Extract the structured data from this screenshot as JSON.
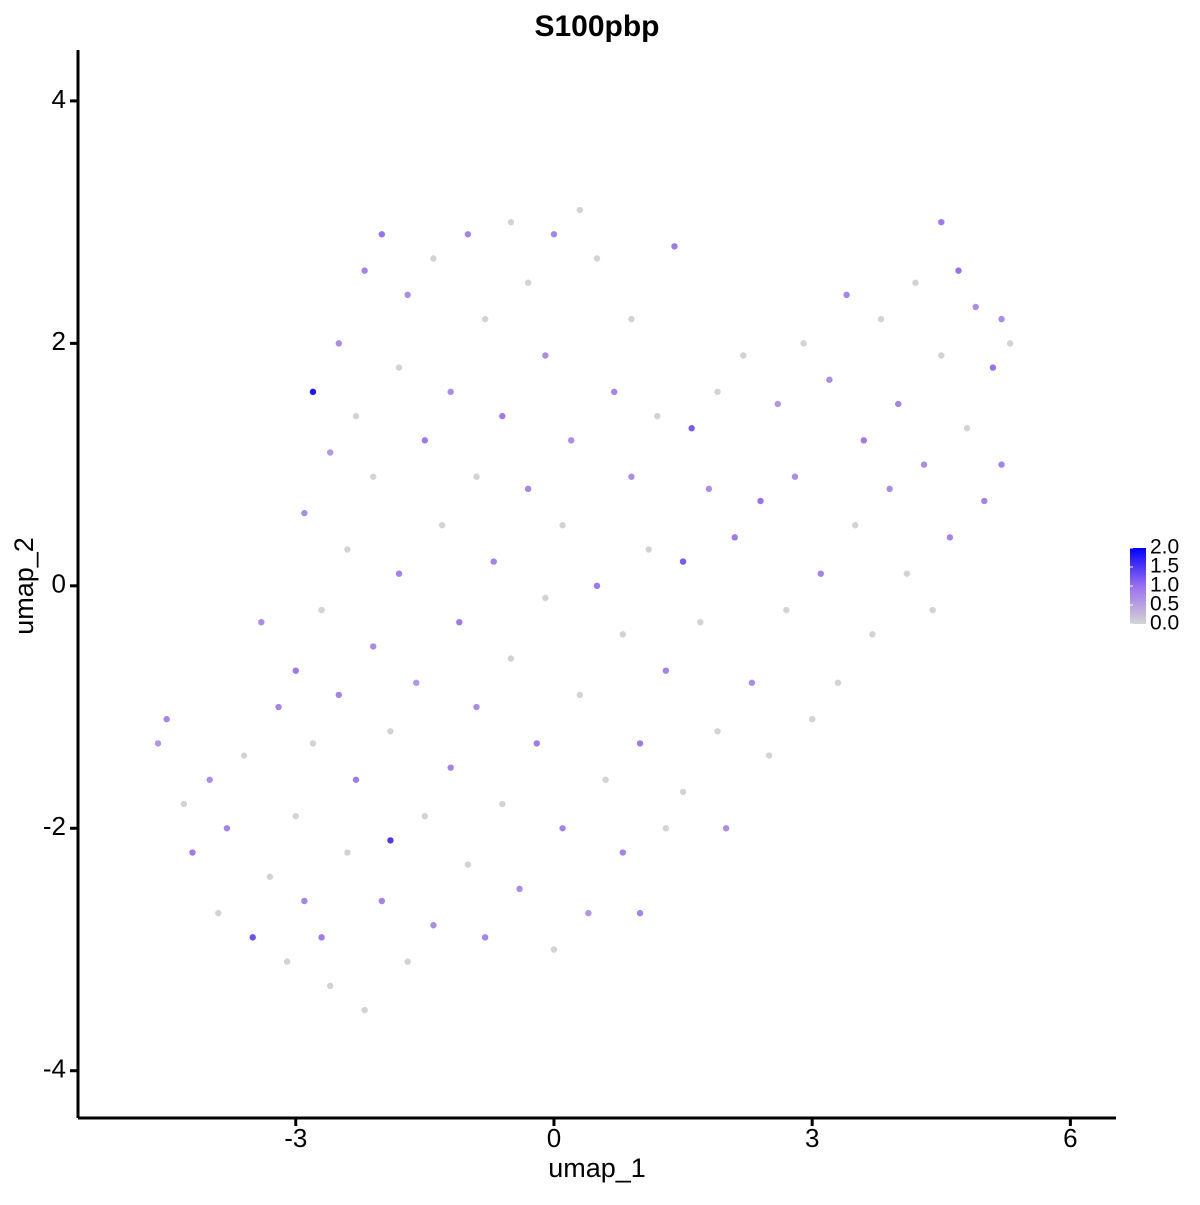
{
  "chart_data": {
    "type": "scatter",
    "title": "S100pbp",
    "x_label": "umap_1",
    "y_label": "umap_2",
    "x": [
      -4.6,
      -4.5,
      -4.3,
      -4.2,
      -4.0,
      -3.9,
      -3.8,
      -3.6,
      -3.5,
      -3.4,
      -3.3,
      -3.2,
      -3.1,
      -3.0,
      -3.0,
      -2.9,
      -2.9,
      -2.8,
      -2.8,
      -2.7,
      -2.7,
      -2.6,
      -2.6,
      -2.5,
      -2.5,
      -2.4,
      -2.4,
      -2.3,
      -2.3,
      -2.2,
      -2.2,
      -2.1,
      -2.1,
      -2.0,
      -2.0,
      -1.9,
      -1.9,
      -1.8,
      -1.8,
      -1.7,
      -1.7,
      -1.6,
      -1.5,
      -1.5,
      -1.4,
      -1.4,
      -1.3,
      -1.2,
      -1.2,
      -1.1,
      -1.0,
      -1.0,
      -0.9,
      -0.9,
      -0.8,
      -0.8,
      -0.7,
      -0.6,
      -0.6,
      -0.5,
      -0.5,
      -0.4,
      -0.3,
      -0.3,
      -0.2,
      -0.1,
      -0.1,
      0.0,
      0.0,
      0.1,
      0.1,
      0.2,
      0.3,
      0.3,
      0.4,
      0.5,
      0.5,
      0.6,
      0.7,
      0.8,
      0.8,
      0.9,
      0.9,
      1.0,
      1.0,
      1.1,
      1.2,
      1.3,
      1.3,
      1.4,
      1.5,
      1.5,
      1.6,
      1.7,
      1.8,
      1.9,
      1.9,
      2.0,
      2.1,
      2.2,
      2.3,
      2.4,
      2.5,
      2.6,
      2.7,
      2.8,
      2.9,
      3.0,
      3.1,
      3.2,
      3.3,
      3.4,
      3.5,
      3.6,
      3.7,
      3.8,
      3.9,
      4.0,
      4.1,
      4.2,
      4.3,
      4.4,
      4.5,
      4.5,
      4.6,
      4.7,
      4.8,
      4.9,
      5.0,
      5.1,
      5.2,
      5.3,
      5.2
    ],
    "y": [
      -1.3,
      -1.1,
      -1.8,
      -2.2,
      -1.6,
      -2.7,
      -2.0,
      -1.4,
      -2.9,
      -0.3,
      -2.4,
      -1.0,
      -3.1,
      -0.7,
      -1.9,
      0.6,
      -2.6,
      -1.3,
      1.6,
      -0.2,
      -2.9,
      1.1,
      -3.3,
      -0.9,
      2.0,
      -2.2,
      0.3,
      -1.6,
      1.4,
      -3.5,
      2.6,
      -0.5,
      0.9,
      -2.6,
      2.9,
      -1.2,
      -2.1,
      0.1,
      1.8,
      -3.1,
      2.4,
      -0.8,
      -1.9,
      1.2,
      -2.8,
      2.7,
      0.5,
      -1.5,
      1.6,
      -0.3,
      -2.3,
      2.9,
      0.9,
      -1.0,
      -2.9,
      2.2,
      0.2,
      -1.8,
      1.4,
      -0.6,
      3.0,
      -2.5,
      0.8,
      2.5,
      -1.3,
      -0.1,
      1.9,
      -3.0,
      2.9,
      -2.0,
      0.5,
      1.2,
      -0.9,
      3.1,
      -2.7,
      0.0,
      2.7,
      -1.6,
      1.6,
      -2.2,
      -0.4,
      2.2,
      0.9,
      -1.3,
      -2.7,
      0.3,
      1.4,
      -0.7,
      -2.0,
      2.8,
      0.2,
      -1.7,
      1.3,
      -0.3,
      0.8,
      -1.2,
      1.6,
      -2.0,
      0.4,
      1.9,
      -0.8,
      0.7,
      -1.4,
      1.5,
      -0.2,
      0.9,
      2.0,
      -1.1,
      0.1,
      1.7,
      -0.8,
      2.4,
      0.5,
      1.2,
      -0.4,
      2.2,
      0.8,
      1.5,
      0.1,
      2.5,
      1.0,
      -0.2,
      3.0,
      1.9,
      0.4,
      2.6,
      1.3,
      2.3,
      0.7,
      1.8,
      2.2,
      2.0,
      1.0
    ],
    "values": [
      0.6,
      0.8,
      0,
      0.9,
      0.7,
      0,
      0.8,
      0,
      1.3,
      0.7,
      0,
      0.8,
      0,
      0.9,
      0,
      0.7,
      0.8,
      0,
      1.8,
      0,
      0.9,
      0.6,
      0,
      0.8,
      0.7,
      0,
      0,
      0.9,
      0,
      0,
      0.8,
      0.7,
      0,
      0.8,
      1.0,
      0,
      1.5,
      0.8,
      0,
      0,
      0.7,
      0.6,
      0,
      0.9,
      0.7,
      0,
      0,
      0.8,
      0.7,
      0.9,
      0,
      0.8,
      0,
      0.7,
      0.8,
      0,
      0.8,
      0,
      0.9,
      0,
      0,
      0.7,
      0.8,
      0,
      0.9,
      0,
      0.7,
      0,
      0.8,
      0.8,
      0,
      0.7,
      0,
      0,
      0.6,
      0.9,
      0,
      0,
      0.8,
      0.8,
      0,
      0,
      0.7,
      0.9,
      0.8,
      0,
      0,
      0.8,
      0,
      0.9,
      1.2,
      0,
      1.2,
      0,
      0.7,
      0,
      0,
      0.7,
      0.9,
      0,
      0.7,
      1.0,
      0,
      0.6,
      0,
      0.7,
      0,
      0,
      0.8,
      0.7,
      0,
      0.8,
      0,
      0.9,
      0,
      0,
      0.7,
      0.8,
      0,
      0,
      0.7,
      0,
      0.9,
      0,
      0.8,
      1.0,
      0,
      0.7,
      0.8,
      1.0,
      0.7,
      0,
      0.8
    ],
    "xlim": [
      -5.53,
      6.53
    ],
    "ylim": [
      -4.39,
      4.42
    ],
    "xticks": [
      -3,
      0,
      3,
      6
    ],
    "yticks": [
      -4,
      -2,
      0,
      2,
      4
    ],
    "colorbar": {
      "lim": [
        0,
        2
      ],
      "colors": [
        "#d3d3d3",
        "#9a6ff0",
        "#0000ff"
      ],
      "ticks": [
        {
          "value": 0,
          "label": "0.0"
        },
        0.5,
        {
          "value": 1,
          "label": "1.0"
        },
        1.5,
        {
          "value": 2,
          "label": "2.0"
        }
      ]
    }
  }
}
